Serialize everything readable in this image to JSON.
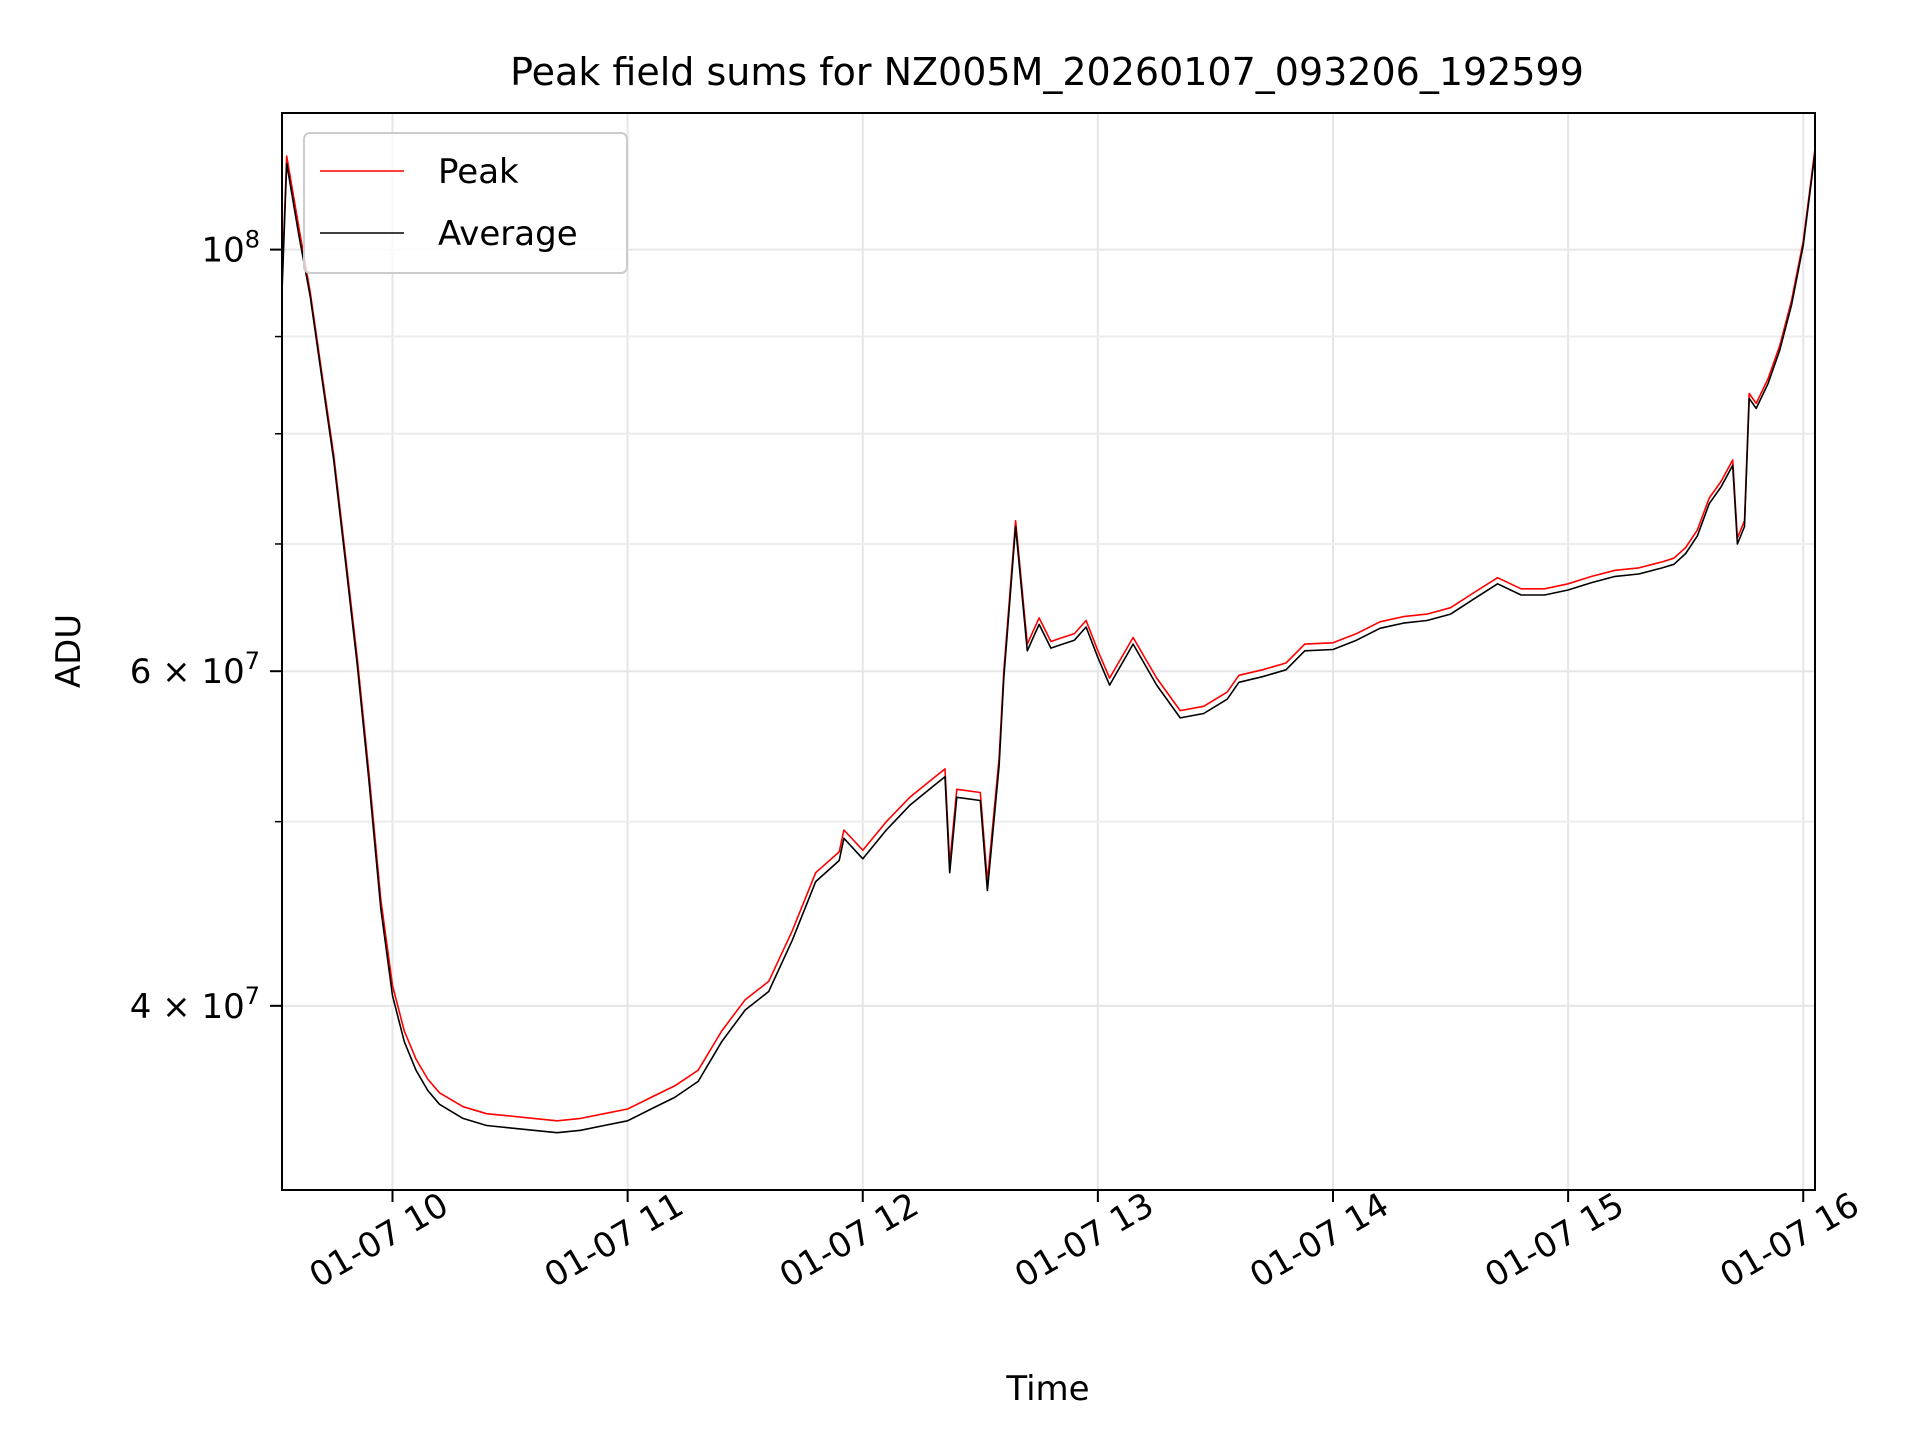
{
  "chart_data": {
    "type": "line",
    "title": "Peak field sums for NZ005M_20260107_093206_192599",
    "xlabel": "Time",
    "ylabel": "ADU",
    "yscale": "log",
    "xlim": [
      9.53,
      16.05
    ],
    "ylim": [
      32000000,
      118000000
    ],
    "grid": true,
    "legend_position": "upper-left",
    "x_ticks": [
      {
        "value": 10,
        "label": "01-07 10"
      },
      {
        "value": 11,
        "label": "01-07 11"
      },
      {
        "value": 12,
        "label": "01-07 12"
      },
      {
        "value": 13,
        "label": "01-07 13"
      },
      {
        "value": 14,
        "label": "01-07 14"
      },
      {
        "value": 15,
        "label": "01-07 15"
      },
      {
        "value": 16,
        "label": "01-07 16"
      }
    ],
    "y_ticks": [
      {
        "value": 40000000,
        "base": "4 × 10",
        "exp": "7"
      },
      {
        "value": 60000000,
        "base": "6 × 10",
        "exp": "7"
      },
      {
        "value": 100000000,
        "base": "10",
        "exp": "8"
      }
    ],
    "y_minor_ticks": [
      50000000,
      70000000,
      80000000,
      90000000
    ],
    "series": [
      {
        "name": "Peak",
        "color": "#ff0000",
        "points": [
          [
            9.53,
            96000000
          ],
          [
            9.55,
            112000000
          ],
          [
            9.6,
            103000000
          ],
          [
            9.65,
            95000000
          ],
          [
            9.7,
            86000000
          ],
          [
            9.75,
            78000000
          ],
          [
            9.8,
            69000000
          ],
          [
            9.85,
            61000000
          ],
          [
            9.9,
            53000000
          ],
          [
            9.95,
            45500000
          ],
          [
            10.0,
            41000000
          ],
          [
            10.05,
            38800000
          ],
          [
            10.1,
            37500000
          ],
          [
            10.15,
            36600000
          ],
          [
            10.2,
            36000000
          ],
          [
            10.3,
            35400000
          ],
          [
            10.4,
            35100000
          ],
          [
            10.5,
            35000000
          ],
          [
            10.6,
            34900000
          ],
          [
            10.7,
            34800000
          ],
          [
            10.8,
            34900000
          ],
          [
            10.9,
            35100000
          ],
          [
            11.0,
            35300000
          ],
          [
            11.1,
            35800000
          ],
          [
            11.2,
            36300000
          ],
          [
            11.3,
            37000000
          ],
          [
            11.4,
            38800000
          ],
          [
            11.5,
            40300000
          ],
          [
            11.6,
            41200000
          ],
          [
            11.7,
            43800000
          ],
          [
            11.8,
            47000000
          ],
          [
            11.9,
            48200000
          ],
          [
            11.92,
            49500000
          ],
          [
            12.0,
            48300000
          ],
          [
            12.1,
            50000000
          ],
          [
            12.2,
            51500000
          ],
          [
            12.3,
            52700000
          ],
          [
            12.35,
            53300000
          ],
          [
            12.37,
            47500000
          ],
          [
            12.4,
            52000000
          ],
          [
            12.5,
            51800000
          ],
          [
            12.53,
            46500000
          ],
          [
            12.58,
            54000000
          ],
          [
            12.6,
            60000000
          ],
          [
            12.65,
            72000000
          ],
          [
            12.7,
            62000000
          ],
          [
            12.75,
            64000000
          ],
          [
            12.8,
            62200000
          ],
          [
            12.85,
            62500000
          ],
          [
            12.9,
            62800000
          ],
          [
            12.95,
            63800000
          ],
          [
            13.0,
            61500000
          ],
          [
            13.05,
            59500000
          ],
          [
            13.15,
            62500000
          ],
          [
            13.25,
            59500000
          ],
          [
            13.35,
            57200000
          ],
          [
            13.45,
            57500000
          ],
          [
            13.55,
            58500000
          ],
          [
            13.6,
            59700000
          ],
          [
            13.7,
            60100000
          ],
          [
            13.8,
            60600000
          ],
          [
            13.88,
            62000000
          ],
          [
            14.0,
            62100000
          ],
          [
            14.1,
            62800000
          ],
          [
            14.2,
            63700000
          ],
          [
            14.3,
            64100000
          ],
          [
            14.4,
            64300000
          ],
          [
            14.5,
            64800000
          ],
          [
            14.6,
            66000000
          ],
          [
            14.7,
            67200000
          ],
          [
            14.8,
            66300000
          ],
          [
            14.9,
            66300000
          ],
          [
            15.0,
            66700000
          ],
          [
            15.1,
            67300000
          ],
          [
            15.2,
            67800000
          ],
          [
            15.3,
            68000000
          ],
          [
            15.4,
            68500000
          ],
          [
            15.45,
            68800000
          ],
          [
            15.5,
            69700000
          ],
          [
            15.55,
            71200000
          ],
          [
            15.6,
            74000000
          ],
          [
            15.65,
            75500000
          ],
          [
            15.7,
            77500000
          ],
          [
            15.72,
            70500000
          ],
          [
            15.75,
            72000000
          ],
          [
            15.77,
            84000000
          ],
          [
            15.8,
            83000000
          ],
          [
            15.85,
            85500000
          ],
          [
            15.9,
            89000000
          ],
          [
            15.95,
            94000000
          ],
          [
            16.0,
            101000000
          ],
          [
            16.03,
            108000000
          ],
          [
            16.05,
            113000000
          ]
        ]
      },
      {
        "name": "Average",
        "color": "#000000",
        "points": [
          [
            9.53,
            95000000
          ],
          [
            9.55,
            111000000
          ],
          [
            9.6,
            102000000
          ],
          [
            9.65,
            94500000
          ],
          [
            9.7,
            85500000
          ],
          [
            9.75,
            77500000
          ],
          [
            9.8,
            68500000
          ],
          [
            9.85,
            60500000
          ],
          [
            9.9,
            52500000
          ],
          [
            9.95,
            45000000
          ],
          [
            10.0,
            40500000
          ],
          [
            10.05,
            38300000
          ],
          [
            10.1,
            37000000
          ],
          [
            10.15,
            36100000
          ],
          [
            10.2,
            35500000
          ],
          [
            10.3,
            34900000
          ],
          [
            10.4,
            34600000
          ],
          [
            10.5,
            34500000
          ],
          [
            10.6,
            34400000
          ],
          [
            10.7,
            34300000
          ],
          [
            10.8,
            34400000
          ],
          [
            10.9,
            34600000
          ],
          [
            11.0,
            34800000
          ],
          [
            11.1,
            35300000
          ],
          [
            11.2,
            35800000
          ],
          [
            11.3,
            36500000
          ],
          [
            11.4,
            38300000
          ],
          [
            11.5,
            39800000
          ],
          [
            11.6,
            40700000
          ],
          [
            11.7,
            43300000
          ],
          [
            11.8,
            46500000
          ],
          [
            11.9,
            47700000
          ],
          [
            11.92,
            49000000
          ],
          [
            12.0,
            47800000
          ],
          [
            12.1,
            49500000
          ],
          [
            12.2,
            51000000
          ],
          [
            12.3,
            52200000
          ],
          [
            12.35,
            52800000
          ],
          [
            12.37,
            47000000
          ],
          [
            12.4,
            51500000
          ],
          [
            12.5,
            51300000
          ],
          [
            12.53,
            46000000
          ],
          [
            12.58,
            53500000
          ],
          [
            12.6,
            59500000
          ],
          [
            12.65,
            71500000
          ],
          [
            12.7,
            61500000
          ],
          [
            12.75,
            63500000
          ],
          [
            12.8,
            61700000
          ],
          [
            12.85,
            62000000
          ],
          [
            12.9,
            62300000
          ],
          [
            12.95,
            63300000
          ],
          [
            13.0,
            61000000
          ],
          [
            13.05,
            59000000
          ],
          [
            13.15,
            62000000
          ],
          [
            13.25,
            59000000
          ],
          [
            13.35,
            56700000
          ],
          [
            13.45,
            57000000
          ],
          [
            13.55,
            58000000
          ],
          [
            13.6,
            59200000
          ],
          [
            13.7,
            59600000
          ],
          [
            13.8,
            60100000
          ],
          [
            13.88,
            61500000
          ],
          [
            14.0,
            61600000
          ],
          [
            14.1,
            62300000
          ],
          [
            14.2,
            63200000
          ],
          [
            14.3,
            63600000
          ],
          [
            14.4,
            63800000
          ],
          [
            14.5,
            64300000
          ],
          [
            14.6,
            65500000
          ],
          [
            14.7,
            66700000
          ],
          [
            14.8,
            65800000
          ],
          [
            14.9,
            65800000
          ],
          [
            15.0,
            66200000
          ],
          [
            15.1,
            66800000
          ],
          [
            15.2,
            67300000
          ],
          [
            15.3,
            67500000
          ],
          [
            15.4,
            68000000
          ],
          [
            15.45,
            68300000
          ],
          [
            15.5,
            69200000
          ],
          [
            15.55,
            70700000
          ],
          [
            15.6,
            73500000
          ],
          [
            15.65,
            75000000
          ],
          [
            15.7,
            77000000
          ],
          [
            15.72,
            70000000
          ],
          [
            15.75,
            71500000
          ],
          [
            15.77,
            83500000
          ],
          [
            15.8,
            82500000
          ],
          [
            15.85,
            85000000
          ],
          [
            15.9,
            88500000
          ],
          [
            15.95,
            93500000
          ],
          [
            16.0,
            100500000
          ],
          [
            16.03,
            107500000
          ],
          [
            16.05,
            112500000
          ]
        ]
      }
    ]
  }
}
